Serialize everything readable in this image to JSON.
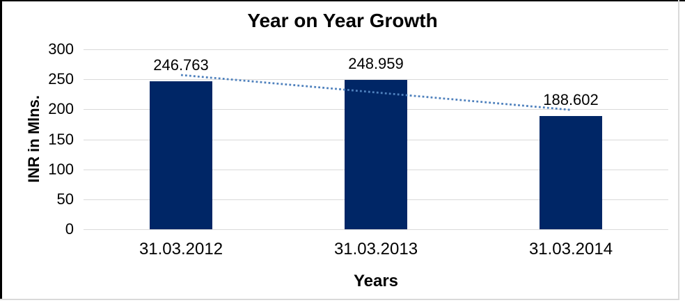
{
  "chart_data": {
    "type": "bar",
    "title": "Year on Year Growth",
    "xlabel": "Years",
    "ylabel": "INR in Mlns.",
    "categories": [
      "31.03.2012",
      "31.03.2013",
      "31.03.2014"
    ],
    "values": [
      246.763,
      248.959,
      188.602
    ],
    "data_labels": [
      "246.763",
      "248.959",
      "188.602"
    ],
    "ylim": [
      0,
      300
    ],
    "yticks": [
      0,
      50,
      100,
      150,
      200,
      250,
      300
    ],
    "grid": true,
    "legend": "none",
    "trendline": {
      "type": "linear",
      "style": "dotted"
    },
    "colors": {
      "bar": "#002666",
      "trendline": "#4F81BD",
      "gridline": "#D9D9D9",
      "text": "#000000",
      "background": "#FFFFFF",
      "frame_border_dark": "#000000",
      "frame_border_light": "#D9D9D9"
    }
  }
}
